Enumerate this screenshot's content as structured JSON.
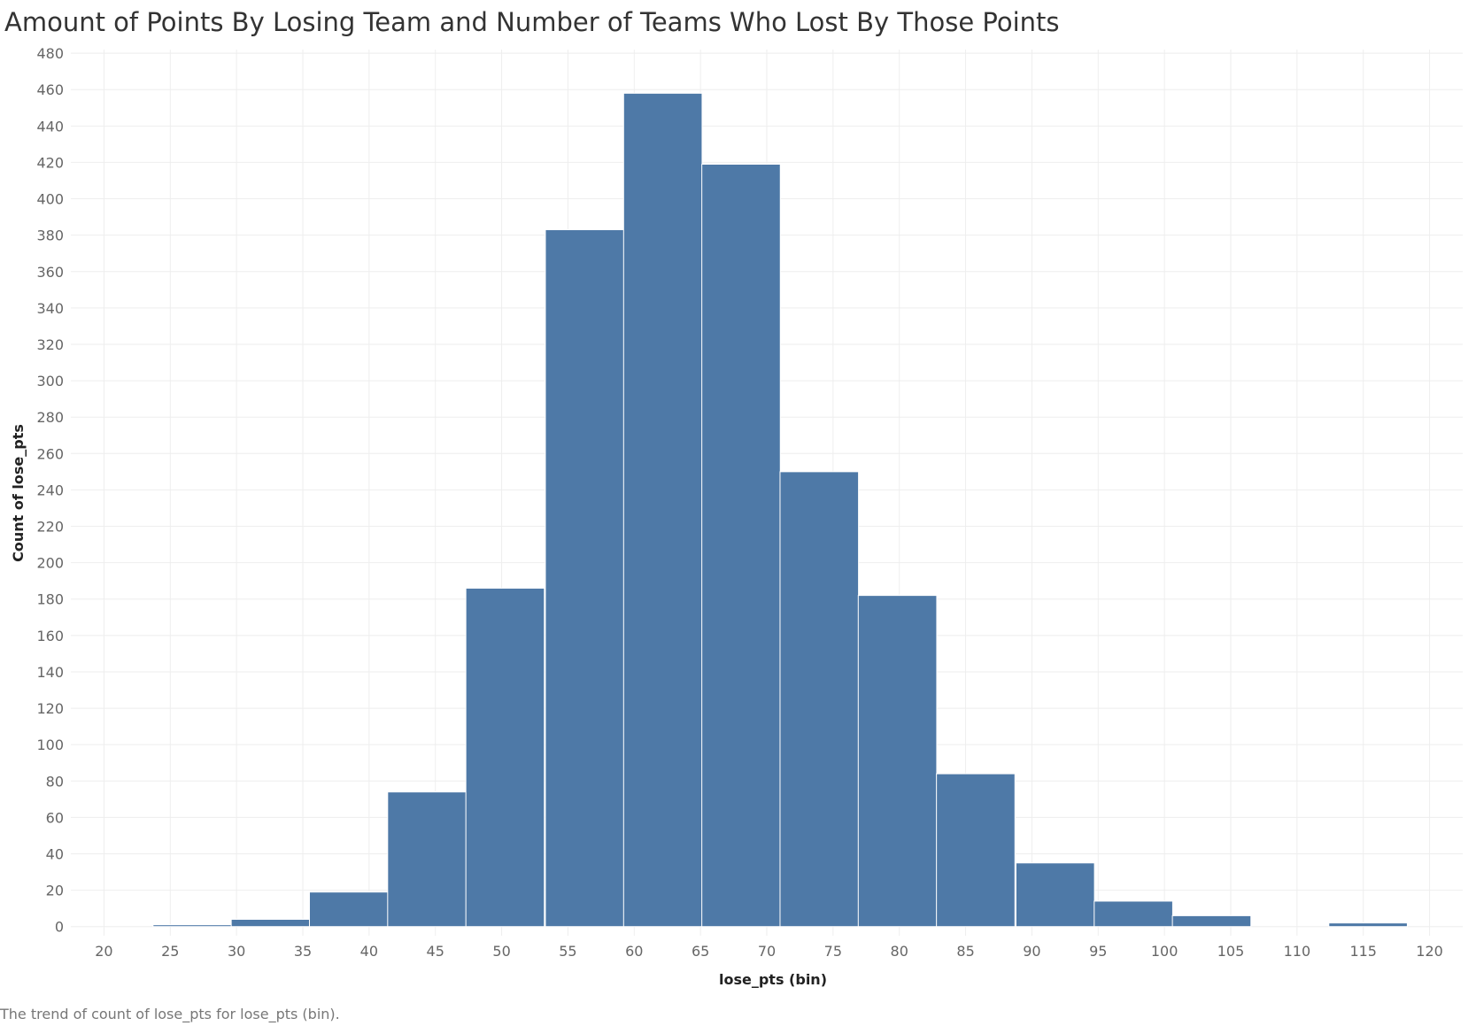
{
  "chart_data": {
    "type": "bar",
    "title": "Amount of Points By Losing Team and Number of Teams Who Lost By Those Points",
    "xlabel": "lose_pts (bin)",
    "ylabel": "Count of lose_pts",
    "caption": "The trend of count of lose_pts for lose_pts (bin).",
    "bar_color": "#4e79a7",
    "grid": true,
    "xlim": [
      17.5,
      122.5
    ],
    "ylim": [
      -5,
      482
    ],
    "x_ticks": [
      20,
      25,
      30,
      35,
      40,
      45,
      50,
      55,
      60,
      65,
      70,
      75,
      80,
      85,
      90,
      95,
      100,
      105,
      110,
      115,
      120
    ],
    "y_ticks": [
      0,
      20,
      40,
      60,
      80,
      100,
      120,
      140,
      160,
      180,
      200,
      220,
      240,
      260,
      280,
      300,
      320,
      340,
      360,
      380,
      400,
      420,
      440,
      460,
      480
    ],
    "bin_width": 5.92,
    "series": [
      {
        "bins": [
          {
            "start": 23.7,
            "value": 1
          },
          {
            "start": 29.6,
            "value": 4
          },
          {
            "start": 35.5,
            "value": 19
          },
          {
            "start": 41.4,
            "value": 74
          },
          {
            "start": 47.3,
            "value": 186
          },
          {
            "start": 53.3,
            "value": 383
          },
          {
            "start": 59.2,
            "value": 458
          },
          {
            "start": 65.1,
            "value": 419
          },
          {
            "start": 71.0,
            "value": 250
          },
          {
            "start": 76.9,
            "value": 182
          },
          {
            "start": 82.8,
            "value": 84
          },
          {
            "start": 88.8,
            "value": 35
          },
          {
            "start": 94.7,
            "value": 14
          },
          {
            "start": 100.6,
            "value": 6
          },
          {
            "start": 112.4,
            "value": 2
          }
        ]
      }
    ]
  }
}
